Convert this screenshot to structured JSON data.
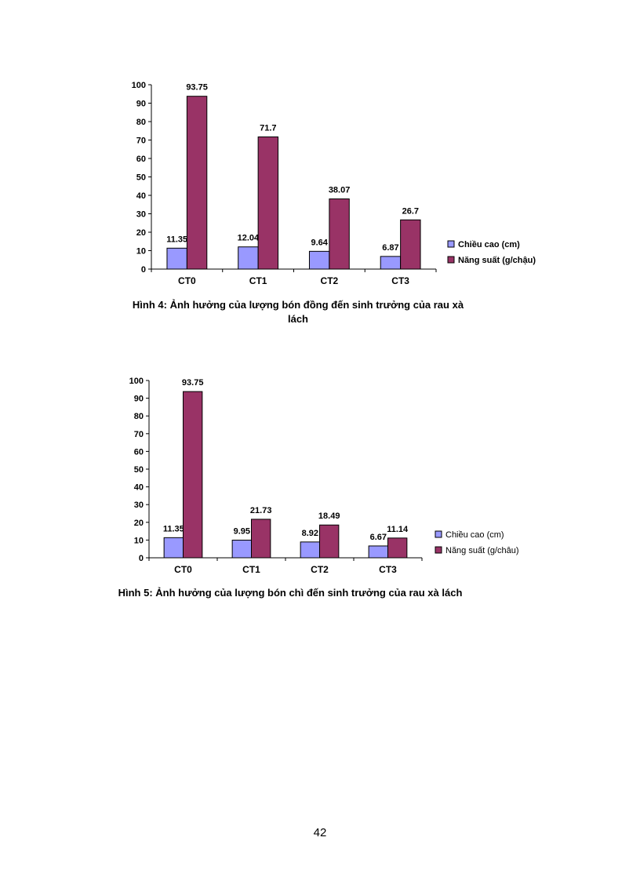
{
  "colors": {
    "series1": "#9999FF",
    "series2": "#993366",
    "axis": "#000000"
  },
  "chart_data": [
    {
      "type": "bar",
      "categories": [
        "CT0",
        "CT1",
        "CT2",
        "CT3"
      ],
      "series": [
        {
          "name": "Chiều cao (cm)",
          "values": [
            11.35,
            12.04,
            9.64,
            6.87
          ]
        },
        {
          "name": "Năng suất (g/chậu)",
          "values": [
            93.75,
            71.7,
            38.07,
            26.7
          ]
        }
      ],
      "data_labels": [
        [
          "11.35",
          "12.04",
          "9.64",
          "6.87"
        ],
        [
          "93.75",
          "71.7",
          "38.07",
          "26.7"
        ]
      ],
      "ylim": [
        0,
        100
      ],
      "yticks": [
        0,
        10,
        20,
        30,
        40,
        50,
        60,
        70,
        80,
        90,
        100
      ],
      "legend": "right",
      "grid": false,
      "caption": "Hình 4: Ảnh hưởng của lượng bón đồng đến sinh trưởng của rau xà lách"
    },
    {
      "type": "bar",
      "categories": [
        "CT0",
        "CT1",
        "CT2",
        "CT3"
      ],
      "series": [
        {
          "name": "Chiều cao (cm)",
          "values": [
            11.35,
            9.95,
            8.92,
            6.67
          ]
        },
        {
          "name": "Năng suất (g/châu)",
          "values": [
            93.75,
            21.73,
            18.49,
            11.14
          ]
        }
      ],
      "data_labels": [
        [
          "11.35",
          "9.95",
          "8.92",
          "6.67"
        ],
        [
          "93.75",
          "21.73",
          "18.49",
          "11.14"
        ]
      ],
      "ylim": [
        0,
        100
      ],
      "yticks": [
        0,
        10,
        20,
        30,
        40,
        50,
        60,
        70,
        80,
        90,
        100
      ],
      "legend": "right",
      "grid": false,
      "caption": "Hình 5: Ảnh hưởng của lượng bón chì đến sinh trưởng của rau xà lách"
    }
  ],
  "page_number": "42"
}
